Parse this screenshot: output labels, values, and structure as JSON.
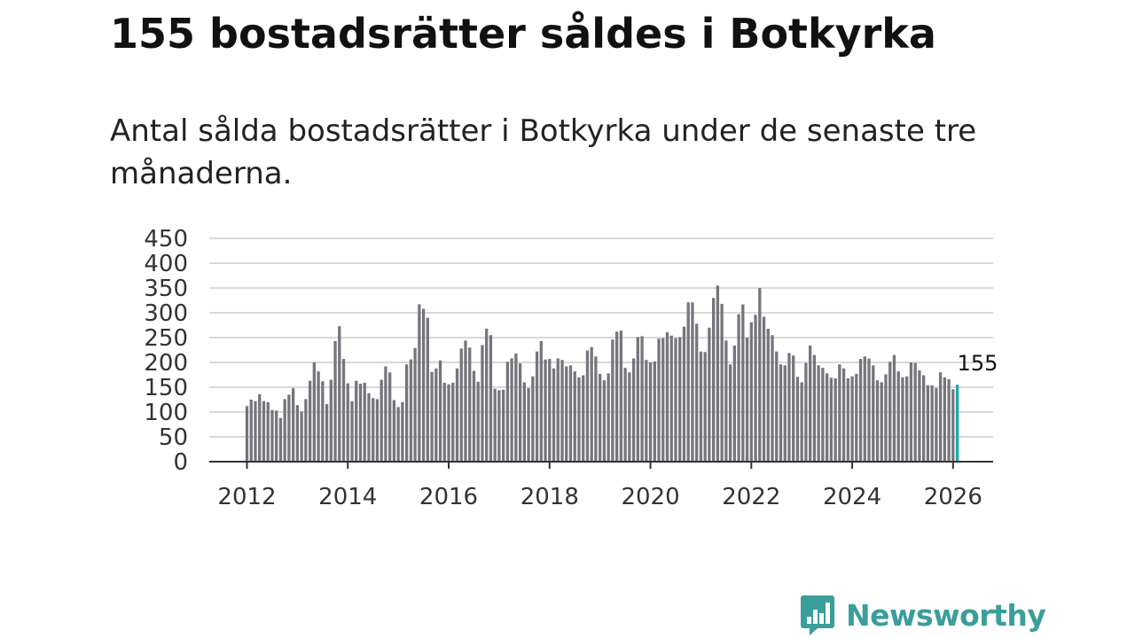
{
  "header": {
    "title": "155 bostadsrätter såldes i Botkyrka",
    "subtitle": "Antal sålda bostadsrätter i Botkyrka under de senaste tre månaderna."
  },
  "brand": {
    "name": "Newsworthy",
    "icon": "newsworthy-logo-icon",
    "color": "#3a9e9a"
  },
  "colors": {
    "bar": "#76757c",
    "highlight": "#19a7a7",
    "grid": "#d9d9d9",
    "axis": "#333333"
  },
  "chart_data": {
    "type": "bar",
    "title": "",
    "xlabel": "",
    "ylabel": "",
    "ylim": [
      0,
      450
    ],
    "yticks": [
      "0",
      "50",
      "100",
      "150",
      "200",
      "250",
      "300",
      "350",
      "400",
      "450"
    ],
    "xticks": [
      "2012",
      "2014",
      "2016",
      "2018",
      "2020",
      "2022",
      "2024",
      "2026"
    ],
    "x_start": "2012-01",
    "frequency": "monthly",
    "grid": true,
    "highlight_label": "155",
    "values": [
      112,
      125,
      122,
      136,
      122,
      120,
      104,
      103,
      88,
      126,
      135,
      148,
      114,
      101,
      126,
      163,
      200,
      182,
      162,
      116,
      165,
      243,
      273,
      207,
      158,
      122,
      163,
      157,
      159,
      138,
      128,
      126,
      165,
      192,
      180,
      124,
      110,
      120,
      196,
      206,
      229,
      317,
      308,
      290,
      181,
      188,
      204,
      159,
      156,
      159,
      188,
      228,
      244,
      230,
      183,
      161,
      235,
      268,
      255,
      147,
      144,
      145,
      201,
      208,
      218,
      198,
      160,
      148,
      172,
      222,
      243,
      206,
      207,
      188,
      208,
      205,
      192,
      194,
      182,
      170,
      174,
      224,
      231,
      212,
      177,
      164,
      178,
      246,
      262,
      264,
      189,
      180,
      208,
      251,
      253,
      205,
      200,
      202,
      248,
      249,
      261,
      254,
      249,
      251,
      272,
      321,
      321,
      278,
      222,
      221,
      270,
      330,
      355,
      318,
      244,
      196,
      234,
      297,
      317,
      250,
      281,
      296,
      350,
      292,
      268,
      255,
      222,
      196,
      194,
      219,
      214,
      171,
      160,
      199,
      234,
      215,
      194,
      189,
      178,
      169,
      168,
      196,
      188,
      168,
      172,
      177,
      207,
      212,
      208,
      194,
      164,
      160,
      176,
      201,
      215,
      182,
      170,
      172,
      200,
      199,
      184,
      174,
      154,
      154,
      148,
      180,
      170,
      166,
      146,
      155
    ]
  }
}
